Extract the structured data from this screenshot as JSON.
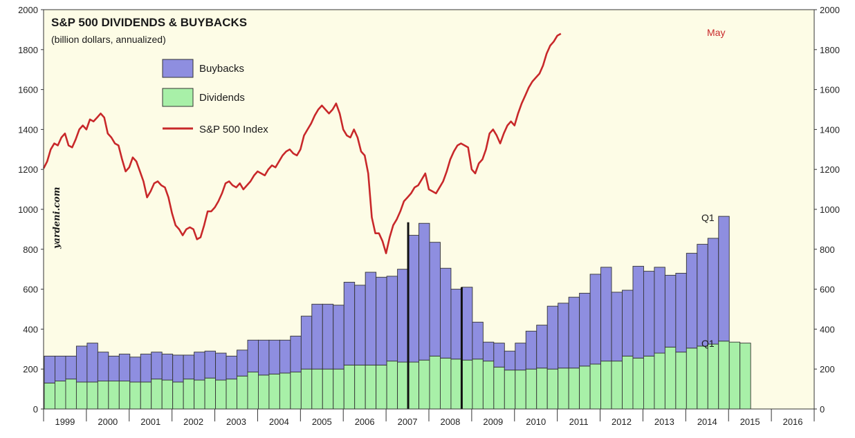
{
  "chart_data": {
    "type": "bar",
    "title": "S&P 500 DIVIDENDS & BUYBACKS",
    "subtitle": "(billion dollars, annualized)",
    "source": "yardeni.com",
    "ylim": [
      0,
      2000
    ],
    "y_ticks": [
      "0",
      "200",
      "400",
      "600",
      "800",
      "1000",
      "1200",
      "1400",
      "1600",
      "1800",
      "2000"
    ],
    "years": [
      "1999",
      "2000",
      "2001",
      "2002",
      "2003",
      "2004",
      "2005",
      "2006",
      "2007",
      "2008",
      "2009",
      "2010",
      "2011",
      "2012",
      "2013",
      "2014",
      "2015",
      "2016"
    ],
    "legend": [
      {
        "name": "Buybacks",
        "color": "#8e8ee0"
      },
      {
        "name": "Dividends",
        "color": "#a8f0a8"
      },
      {
        "name": "S&P 500 Index",
        "color": "#c8282a"
      }
    ],
    "series": [
      {
        "name": "Dividends",
        "values": [
          130,
          140,
          150,
          135,
          135,
          140,
          140,
          140,
          135,
          135,
          150,
          145,
          135,
          150,
          145,
          155,
          145,
          150,
          165,
          185,
          170,
          175,
          180,
          185,
          200,
          200,
          200,
          200,
          220,
          220,
          220,
          220,
          240,
          235,
          235,
          245,
          265,
          255,
          250,
          245,
          250,
          240,
          210,
          195,
          195,
          200,
          205,
          200,
          205,
          205,
          215,
          225,
          240,
          240,
          265,
          255,
          265,
          280,
          310,
          285,
          305,
          315,
          325,
          340,
          335,
          330
        ]
      },
      {
        "name": "Buybacks",
        "values": [
          135,
          125,
          115,
          180,
          195,
          145,
          125,
          135,
          125,
          140,
          135,
          130,
          135,
          120,
          140,
          135,
          135,
          115,
          130,
          160,
          175,
          170,
          165,
          180,
          265,
          325,
          325,
          320,
          415,
          400,
          465,
          440,
          425,
          465,
          635,
          685,
          570,
          450,
          350,
          365,
          185,
          95,
          120,
          95,
          135,
          190,
          215,
          315,
          325,
          355,
          365,
          450,
          470,
          345,
          330,
          460,
          425,
          430,
          360,
          395,
          475,
          510,
          530,
          625,
          0,
          0
        ]
      },
      {
        "name": "S&P 500 Index",
        "values": [
          1205,
          1240,
          1300,
          1330,
          1320,
          1360,
          1380,
          1320,
          1310,
          1350,
          1400,
          1420,
          1400,
          1450,
          1440,
          1460,
          1480,
          1460,
          1380,
          1360,
          1330,
          1320,
          1250,
          1190,
          1210,
          1260,
          1240,
          1190,
          1140,
          1060,
          1090,
          1130,
          1140,
          1120,
          1110,
          1060,
          980,
          920,
          900,
          870,
          900,
          910,
          900,
          850,
          860,
          920,
          990,
          990,
          1010,
          1040,
          1080,
          1130,
          1140,
          1120,
          1110,
          1130,
          1100,
          1120,
          1140,
          1170,
          1190,
          1180,
          1170,
          1200,
          1220,
          1210,
          1240,
          1270,
          1290,
          1300,
          1280,
          1270,
          1300,
          1370,
          1400,
          1430,
          1470,
          1500,
          1520,
          1500,
          1480,
          1500,
          1530,
          1480,
          1400,
          1370,
          1360,
          1400,
          1360,
          1290,
          1270,
          1180,
          960,
          880,
          880,
          840,
          780,
          860,
          920,
          950,
          990,
          1040,
          1060,
          1080,
          1110,
          1120,
          1150,
          1180,
          1100,
          1090,
          1080,
          1110,
          1140,
          1190,
          1250,
          1290,
          1320,
          1330,
          1320,
          1310,
          1200,
          1180,
          1230,
          1250,
          1300,
          1380,
          1400,
          1370,
          1330,
          1380,
          1420,
          1440,
          1420,
          1480,
          1530,
          1570,
          1610,
          1640,
          1660,
          1680,
          1720,
          1780,
          1820,
          1840,
          1870,
          1880
        ]
      }
    ],
    "annotations": [
      "May",
      "Q1",
      "Q1"
    ]
  }
}
